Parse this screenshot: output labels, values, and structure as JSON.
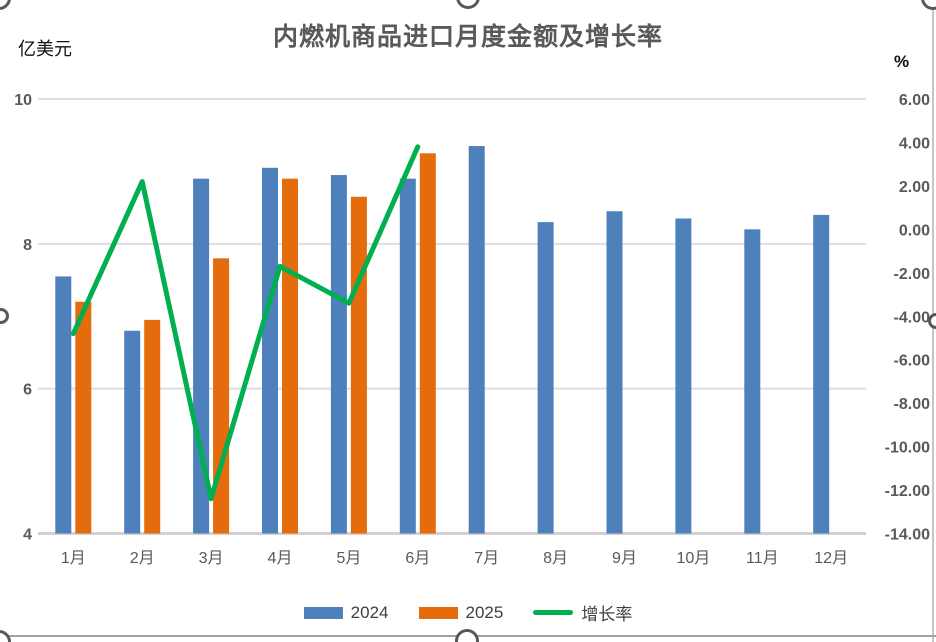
{
  "title": "内燃机商品进口月度金额及增长率",
  "colors": {
    "bar_2024": "#4E80BC",
    "bar_2025": "#E56C0C",
    "growth_line": "#00AF50",
    "title_text": "#595959",
    "axis_text": "#595959",
    "gridline": "#DEDEDE",
    "axis_line": "#D2D0D0"
  },
  "legend": [
    {
      "label": "2024",
      "swatch": "rect",
      "color": "#4E80BC"
    },
    {
      "label": "2025",
      "swatch": "rect",
      "color": "#E56C0C"
    },
    {
      "label": "增长率",
      "swatch": "line",
      "color": "#00AF50"
    }
  ],
  "chart_data": {
    "type": "bar",
    "subtype": "combo-bar-line-dual-axis",
    "title": "内燃机商品进口月度金额及增长率",
    "categories": [
      "1月",
      "2月",
      "3月",
      "4月",
      "5月",
      "6月",
      "7月",
      "8月",
      "9月",
      "10月",
      "11月",
      "12月"
    ],
    "series": [
      {
        "name": "2024",
        "type": "bar",
        "axis": "left",
        "values": [
          7.55,
          6.8,
          8.9,
          9.05,
          8.95,
          8.9,
          9.35,
          8.3,
          8.45,
          8.35,
          8.2,
          8.4
        ]
      },
      {
        "name": "2025",
        "type": "bar",
        "axis": "left",
        "values": [
          7.2,
          6.95,
          7.8,
          8.9,
          8.65,
          9.25,
          null,
          null,
          null,
          null,
          null,
          null
        ]
      },
      {
        "name": "增长率",
        "type": "line",
        "axis": "right",
        "values": [
          -4.8,
          2.2,
          -12.4,
          -1.7,
          -3.4,
          3.8,
          null,
          null,
          null,
          null,
          null,
          null
        ]
      }
    ],
    "left_axis": {
      "label": "亿美元",
      "min": 4,
      "max": 10,
      "ticks": [
        "10",
        "8",
        "6",
        "4"
      ]
    },
    "right_axis": {
      "label": "%",
      "min": -14,
      "max": 6,
      "ticks": [
        "6.00",
        "4.00",
        "2.00",
        "0.00",
        "-2.00",
        "-4.00",
        "-6.00",
        "-8.00",
        "-10.00",
        "-12.00",
        "-14.00"
      ]
    },
    "grid": true,
    "legend_position": "bottom"
  }
}
